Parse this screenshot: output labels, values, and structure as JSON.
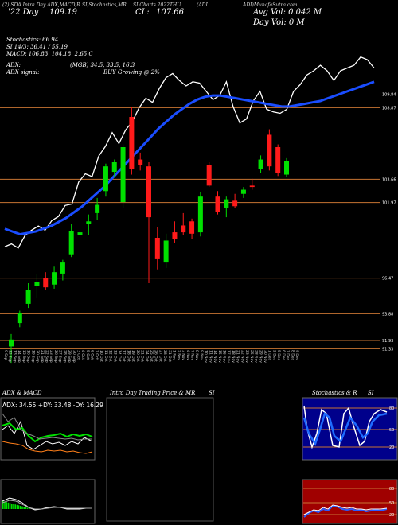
{
  "header": {
    "line1_left": "(2) SDA Intra Day ADX,MACD,R",
    "line1_mid": "SI,Stochastics,MR",
    "line1_right": "SI Charts 2022THU",
    "line1_tag": "(ADI",
    "line1_far": "ADI)MunafaSutra.com"
  },
  "price_line": {
    "label1": "'22 Day",
    "value1": "109.19",
    "label2": "CL:",
    "value2": "107.66"
  },
  "volume_info": {
    "avg": "Avg Vol: 0.042  M",
    "day": "Day Vol: 0   M"
  },
  "indicators": {
    "stochastics": "Stochastics: 66.94",
    "si": "SI 14/3: 36.41 / 55.19",
    "macd": "MACD: 106.83, 104.18, 2.65 C",
    "adx": "ADX:",
    "adx_values": "(MGB) 34.5,  33.5,  16.3",
    "adx_signal": "ADX  signal:",
    "adx_signal_value": "BUY Growing @ 2%"
  },
  "price_levels": [
    "109.84",
    "108.87",
    "103.66",
    "101.97",
    "96.47",
    "93.88",
    "91.93",
    "91.33"
  ],
  "dates": [
    "9 Sep",
    "12 Sep",
    "13 Sep",
    "14 Sep",
    "15 Sep",
    "16 Sep",
    "19 Sep",
    "20 Sep",
    "21 Sep",
    "22 Sep",
    "23 Sep",
    "26 Sep",
    "27 Sep",
    "28 Sep",
    "29 Sep",
    "30 Sep",
    "3 Oct",
    "4 Oct",
    "5 Oct",
    "6 Oct",
    "7 Oct",
    "10 Oct",
    "11 Oct",
    "12 Oct",
    "13 Oct",
    "14 Oct",
    "17 Oct",
    "18 Oct",
    "19 Oct",
    "20 Oct",
    "21 Oct",
    "24 Oct",
    "25 Oct",
    "26 Oct",
    "27 Oct",
    "28 Oct",
    "31 Oct",
    "1 Nov",
    "2 Nov",
    "3 Nov",
    "4 Nov",
    "7 Nov",
    "8 Nov",
    "9 Nov",
    "10 Nov",
    "11 Nov",
    "14 Nov",
    "15 Nov",
    "16 Nov",
    "17 Nov",
    "18 Nov",
    "21 Nov",
    "22 Nov",
    "23 Nov",
    "25 Nov",
    "28 Nov",
    "29 Nov",
    "30 Nov",
    "1 Dec",
    "2 Dec",
    "5 Dec",
    "6 Dec",
    "7 Dec",
    "8 Dec",
    "9 Dec"
  ],
  "panels": {
    "adx_title": "ADX  & MACD",
    "adx_readout": "ADX: 34.55  +DY: 33.48  -DY: 16.29",
    "intraday_title": "Intra Day Trading Price  & MR",
    "intraday_si": "SI",
    "stoch_title": "Stochastics & R",
    "stoch_si": "SI",
    "stoch_levels": [
      "80",
      "50",
      "20"
    ],
    "rsi_levels": [
      "80",
      "50",
      "20"
    ]
  },
  "colors": {
    "up": "#00e000",
    "down": "#ff1a1a",
    "sma_blue": "#1a4dff",
    "level_line": "#c87533",
    "rsi_bg": "#a00000",
    "stoch_bg": "#00008b"
  },
  "chart_data": {
    "type": "candlestick",
    "title": "",
    "ylim": [
      89.5,
      111.5
    ],
    "candles": [
      {
        "date": "9 Sep",
        "o": 91.5,
        "h": 92.4,
        "l": 90.3,
        "c": 92.0
      },
      {
        "date": "13 Sep",
        "o": 93.2,
        "h": 94.1,
        "l": 92.9,
        "c": 93.9
      },
      {
        "date": "19 Sep",
        "o": 94.6,
        "h": 96.1,
        "l": 94.3,
        "c": 95.6
      },
      {
        "date": "23 Sep",
        "o": 95.9,
        "h": 96.8,
        "l": 95.0,
        "c": 96.2
      },
      {
        "date": "27 Sep",
        "o": 96.5,
        "h": 96.9,
        "l": 95.6,
        "c": 95.8
      },
      {
        "date": "29 Sep",
        "o": 96.0,
        "h": 97.3,
        "l": 95.7,
        "c": 96.9
      },
      {
        "date": "4 Oct",
        "o": 96.8,
        "h": 97.8,
        "l": 96.3,
        "c": 97.6
      },
      {
        "date": "6 Oct",
        "o": 98.2,
        "h": 100.4,
        "l": 98.0,
        "c": 99.9
      },
      {
        "date": "10 Oct",
        "o": 99.6,
        "h": 100.2,
        "l": 99.1,
        "c": 99.8
      },
      {
        "date": "12 Oct",
        "o": 100.4,
        "h": 101.1,
        "l": 99.6,
        "c": 100.6
      },
      {
        "date": "14 Oct",
        "o": 101.2,
        "h": 102.3,
        "l": 100.7,
        "c": 101.8
      },
      {
        "date": "18 Oct",
        "o": 102.8,
        "h": 104.8,
        "l": 102.4,
        "c": 104.6
      },
      {
        "date": "20 Oct",
        "o": 104.2,
        "h": 105.1,
        "l": 103.8,
        "c": 104.9
      },
      {
        "date": "24 Oct",
        "o": 102.0,
        "h": 106.2,
        "l": 101.6,
        "c": 106.0
      },
      {
        "date": "26 Oct",
        "o": 108.2,
        "h": 108.9,
        "l": 104.0,
        "c": 104.4
      },
      {
        "date": "28 Oct",
        "o": 105.1,
        "h": 105.6,
        "l": 104.3,
        "c": 104.7
      },
      {
        "date": "1 Nov",
        "o": 104.6,
        "h": 104.9,
        "l": 96.1,
        "c": 100.9
      },
      {
        "date": "3 Nov",
        "o": 99.4,
        "h": 100.2,
        "l": 97.1,
        "c": 97.9
      },
      {
        "date": "7 Nov",
        "o": 97.6,
        "h": 99.7,
        "l": 97.2,
        "c": 99.2
      },
      {
        "date": "9 Nov",
        "o": 99.8,
        "h": 100.6,
        "l": 99.0,
        "c": 99.3
      },
      {
        "date": "11 Nov",
        "o": 100.3,
        "h": 101.2,
        "l": 99.6,
        "c": 99.8
      },
      {
        "date": "15 Nov",
        "o": 100.6,
        "h": 100.8,
        "l": 99.3,
        "c": 99.7
      },
      {
        "date": "17 Nov",
        "o": 99.8,
        "h": 102.7,
        "l": 99.5,
        "c": 102.4
      },
      {
        "date": "21 Nov",
        "o": 104.7,
        "h": 104.9,
        "l": 103.1,
        "c": 103.2
      },
      {
        "date": "23 Nov",
        "o": 102.4,
        "h": 102.8,
        "l": 101.1,
        "c": 101.3
      },
      {
        "date": "28 Nov",
        "o": 101.6,
        "h": 102.4,
        "l": 100.9,
        "c": 102.2
      },
      {
        "date": "29 Nov",
        "o": 102.1,
        "h": 102.6,
        "l": 101.6,
        "c": 101.7
      },
      {
        "date": "30 Nov",
        "o": 102.6,
        "h": 103.1,
        "l": 102.3,
        "c": 102.9
      },
      {
        "date": "1 Dec",
        "o": 103.2,
        "h": 103.7,
        "l": 102.9,
        "c": 103.1
      },
      {
        "date": "5 Dec",
        "o": 104.4,
        "h": 105.4,
        "l": 104.1,
        "c": 105.1
      },
      {
        "date": "6 Dec",
        "o": 106.9,
        "h": 107.3,
        "l": 104.3,
        "c": 104.6
      },
      {
        "date": "7 Dec",
        "o": 106.0,
        "h": 106.2,
        "l": 103.9,
        "c": 104.1
      },
      {
        "date": "8 Dec",
        "o": 104.0,
        "h": 105.2,
        "l": 103.8,
        "c": 105.0
      }
    ],
    "price_line": [
      92.1,
      92.3,
      92.0,
      92.9,
      93.3,
      93.6,
      93.3,
      94.0,
      94.3,
      95.1,
      95.2,
      96.8,
      97.4,
      97.2,
      98.7,
      99.4,
      100.4,
      99.6,
      100.6,
      101.2,
      102.2,
      102.9,
      102.6,
      103.6,
      104.4,
      104.7,
      104.2,
      103.8,
      104.1,
      104.0,
      103.4,
      102.8,
      103.1,
      104.1,
      102.3,
      101.1,
      101.4,
      102.7,
      103.4,
      102.1,
      101.9,
      101.8,
      102.1,
      103.4,
      103.9,
      104.6,
      104.9,
      105.3,
      104.9,
      104.2,
      104.9,
      105.1,
      105.3,
      105.9,
      105.7,
      105.1
    ],
    "sma": [
      93.4,
      93.2,
      93.0,
      93.1,
      93.2,
      93.4,
      93.6,
      93.9,
      94.2,
      94.6,
      95.0,
      95.5,
      96.0,
      96.5,
      97.1,
      97.7,
      98.3,
      98.9,
      99.5,
      100.1,
      100.7,
      101.2,
      101.7,
      102.1,
      102.5,
      102.8,
      103.0,
      103.1,
      103.1,
      103.0,
      102.9,
      102.8,
      102.7,
      102.6,
      102.5,
      102.4,
      102.3,
      102.3,
      102.4,
      102.5,
      102.6,
      102.7,
      102.9,
      103.1,
      103.3,
      103.5,
      103.7,
      103.9,
      104.1
    ]
  }
}
